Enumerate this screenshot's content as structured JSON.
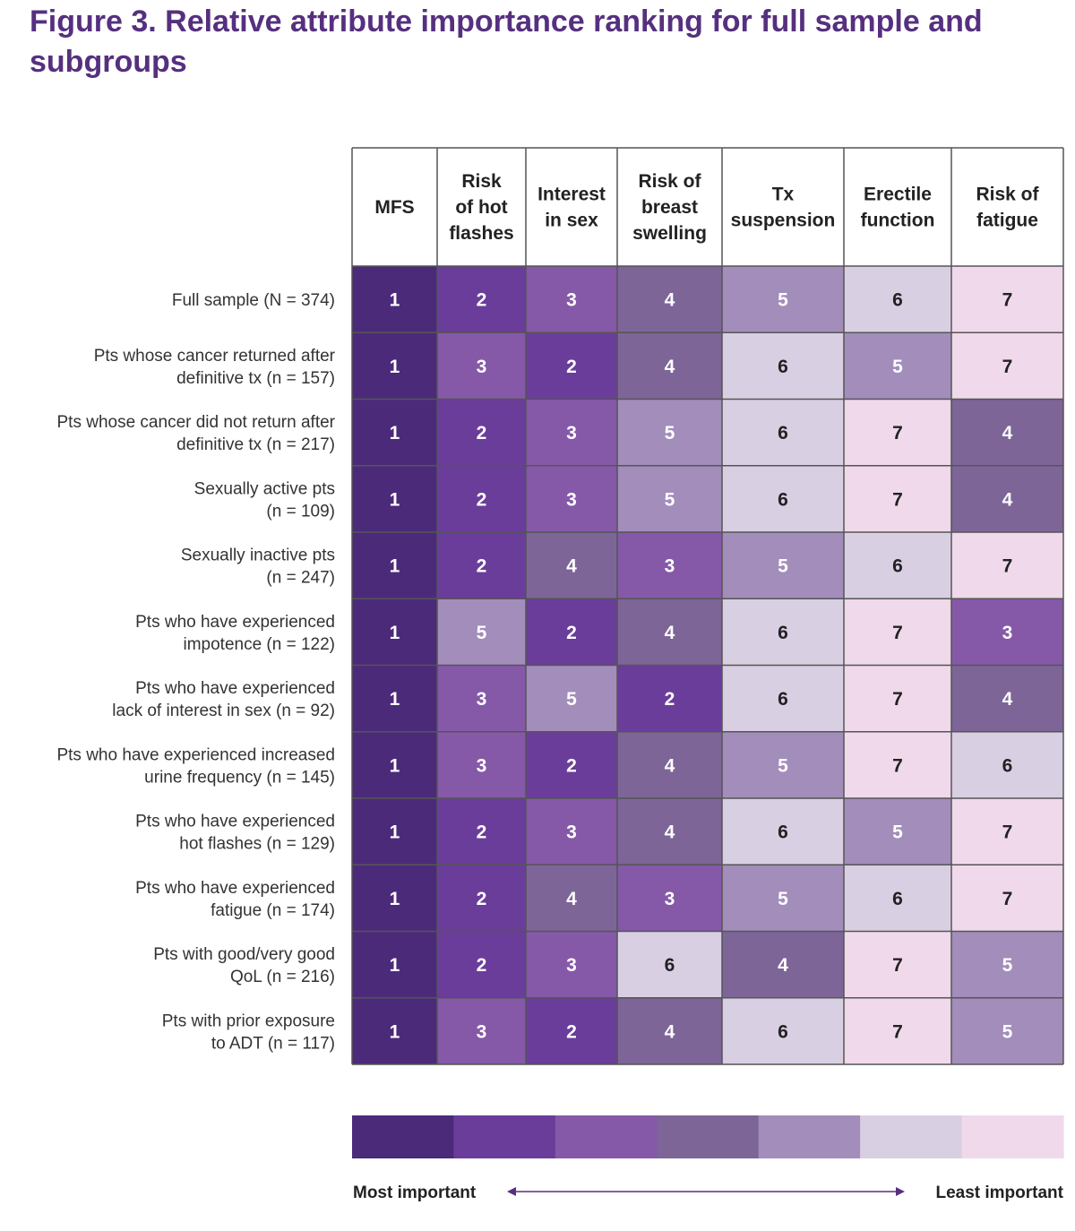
{
  "chart_data": {
    "type": "heatmap",
    "title": "Figure 3. Relative attribute importance ranking for full sample and subgroups",
    "columns": [
      [
        "MFS"
      ],
      [
        "Risk",
        "of hot",
        "flashes"
      ],
      [
        "Interest",
        "in sex"
      ],
      [
        "Risk of",
        "breast",
        "swelling"
      ],
      [
        "Tx",
        "suspension"
      ],
      [
        "Erectile",
        "function"
      ],
      [
        "Risk of",
        "fatigue"
      ]
    ],
    "rows": [
      [
        "Full sample (N = 374)"
      ],
      [
        "Pts whose cancer returned after",
        "definitive tx (n = 157)"
      ],
      [
        "Pts whose cancer did not return after",
        "definitive tx (n = 217)"
      ],
      [
        "Sexually active pts",
        "(n = 109)"
      ],
      [
        "Sexually inactive pts",
        "(n = 247)"
      ],
      [
        "Pts who have experienced",
        "impotence (n = 122)"
      ],
      [
        "Pts who have experienced",
        "lack of interest in sex (n = 92)"
      ],
      [
        "Pts who have experienced increased",
        "urine frequency (n = 145)"
      ],
      [
        "Pts who have experienced",
        "hot flashes (n = 129)"
      ],
      [
        "Pts who have experienced",
        "fatigue (n = 174)"
      ],
      [
        "Pts with good/very good",
        "QoL (n = 216)"
      ],
      [
        "Pts with prior exposure",
        "to ADT (n = 117)"
      ]
    ],
    "values": [
      [
        1,
        2,
        3,
        4,
        5,
        6,
        7
      ],
      [
        1,
        3,
        2,
        4,
        6,
        5,
        7
      ],
      [
        1,
        2,
        3,
        5,
        6,
        7,
        4
      ],
      [
        1,
        2,
        3,
        5,
        6,
        7,
        4
      ],
      [
        1,
        2,
        4,
        3,
        5,
        6,
        7
      ],
      [
        1,
        5,
        2,
        4,
        6,
        7,
        3
      ],
      [
        1,
        3,
        5,
        2,
        6,
        7,
        4
      ],
      [
        1,
        3,
        2,
        4,
        5,
        7,
        6
      ],
      [
        1,
        2,
        3,
        4,
        6,
        5,
        7
      ],
      [
        1,
        2,
        4,
        3,
        5,
        6,
        7
      ],
      [
        1,
        2,
        3,
        6,
        4,
        7,
        5
      ],
      [
        1,
        3,
        2,
        4,
        6,
        7,
        5
      ]
    ],
    "scale_colors": [
      "#4c2a7a",
      "#6a3d9a",
      "#8559a8",
      "#7d6598",
      "#a28dbb",
      "#d9cfe3",
      "#f0d9ea"
    ],
    "legend": {
      "min_label": "Most important",
      "max_label": "Least important"
    }
  }
}
